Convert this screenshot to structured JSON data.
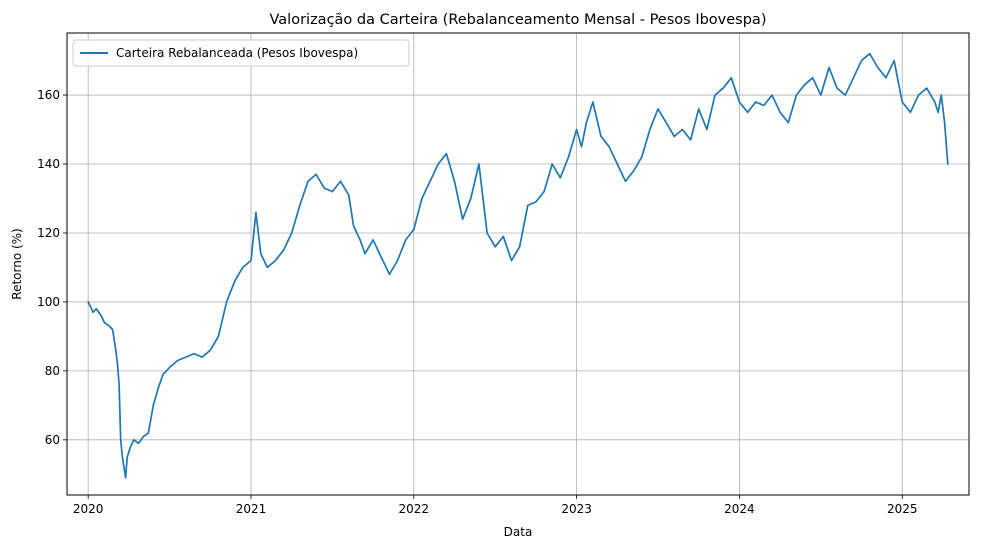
{
  "chart_data": {
    "type": "line",
    "title": "Valorização da Carteira (Rebalanceamento Mensal - Pesos Ibovespa)",
    "xlabel": "Data",
    "ylabel": "Retorno (%)",
    "xlim": [
      2019.87,
      2025.41
    ],
    "ylim": [
      44,
      178
    ],
    "x_ticks": [
      {
        "value": 2020,
        "label": "2020"
      },
      {
        "value": 2021,
        "label": "2021"
      },
      {
        "value": 2022,
        "label": "2022"
      },
      {
        "value": 2023,
        "label": "2023"
      },
      {
        "value": 2024,
        "label": "2024"
      },
      {
        "value": 2025,
        "label": "2025"
      }
    ],
    "y_ticks": [
      {
        "value": 60,
        "label": "60"
      },
      {
        "value": 80,
        "label": "80"
      },
      {
        "value": 100,
        "label": "100"
      },
      {
        "value": 120,
        "label": "120"
      },
      {
        "value": 140,
        "label": "140"
      },
      {
        "value": 160,
        "label": "160"
      }
    ],
    "grid": true,
    "legend_position": "top-left",
    "series": [
      {
        "name": "Carteira Rebalanceada (Pesos Ibovespa)",
        "color": "#1f77b4",
        "x": [
          2020.0,
          2020.03,
          2020.05,
          2020.08,
          2020.1,
          2020.13,
          2020.15,
          2020.17,
          2020.18,
          2020.19,
          2020.2,
          2020.21,
          2020.22,
          2020.23,
          2020.24,
          2020.26,
          2020.28,
          2020.31,
          2020.34,
          2020.37,
          2020.4,
          2020.43,
          2020.46,
          2020.5,
          2020.55,
          2020.6,
          2020.65,
          2020.7,
          2020.75,
          2020.8,
          2020.85,
          2020.9,
          2020.95,
          2021.0,
          2021.03,
          2021.06,
          2021.1,
          2021.15,
          2021.2,
          2021.25,
          2021.3,
          2021.35,
          2021.4,
          2021.45,
          2021.5,
          2021.55,
          2021.6,
          2021.63,
          2021.67,
          2021.7,
          2021.75,
          2021.8,
          2021.85,
          2021.9,
          2021.95,
          2022.0,
          2022.05,
          2022.1,
          2022.15,
          2022.2,
          2022.25,
          2022.3,
          2022.35,
          2022.4,
          2022.45,
          2022.5,
          2022.55,
          2022.6,
          2022.65,
          2022.7,
          2022.75,
          2022.8,
          2022.85,
          2022.9,
          2022.95,
          2023.0,
          2023.03,
          2023.06,
          2023.1,
          2023.15,
          2023.2,
          2023.25,
          2023.3,
          2023.35,
          2023.4,
          2023.45,
          2023.5,
          2023.55,
          2023.6,
          2023.65,
          2023.7,
          2023.75,
          2023.8,
          2023.85,
          2023.9,
          2023.95,
          2024.0,
          2024.05,
          2024.1,
          2024.15,
          2024.2,
          2024.25,
          2024.3,
          2024.35,
          2024.4,
          2024.45,
          2024.5,
          2024.55,
          2024.6,
          2024.65,
          2024.7,
          2024.75,
          2024.8,
          2024.85,
          2024.9,
          2024.95,
          2025.0,
          2025.05,
          2025.1,
          2025.15,
          2025.2,
          2025.22,
          2025.24,
          2025.26,
          2025.28
        ],
        "y": [
          100,
          97,
          98,
          96,
          94,
          93,
          92,
          86,
          82,
          76,
          60,
          55,
          52,
          49,
          55,
          58,
          60,
          59,
          61,
          62,
          70,
          75,
          79,
          81,
          83,
          84,
          85,
          84,
          86,
          90,
          100,
          106,
          110,
          112,
          126,
          114,
          110,
          112,
          115,
          120,
          128,
          135,
          137,
          133,
          132,
          135,
          131,
          122,
          118,
          114,
          118,
          113,
          108,
          112,
          118,
          121,
          130,
          135,
          140,
          143,
          135,
          124,
          130,
          140,
          120,
          116,
          119,
          112,
          116,
          128,
          129,
          132,
          140,
          136,
          142,
          150,
          145,
          152,
          158,
          148,
          145,
          140,
          135,
          138,
          142,
          150,
          156,
          152,
          148,
          150,
          147,
          156,
          150,
          160,
          162,
          165,
          158,
          155,
          158,
          157,
          160,
          155,
          152,
          160,
          163,
          165,
          160,
          168,
          162,
          160,
          165,
          170,
          172,
          168,
          165,
          170,
          158,
          155,
          160,
          162,
          158,
          155,
          160,
          152,
          140
        ]
      }
    ]
  }
}
